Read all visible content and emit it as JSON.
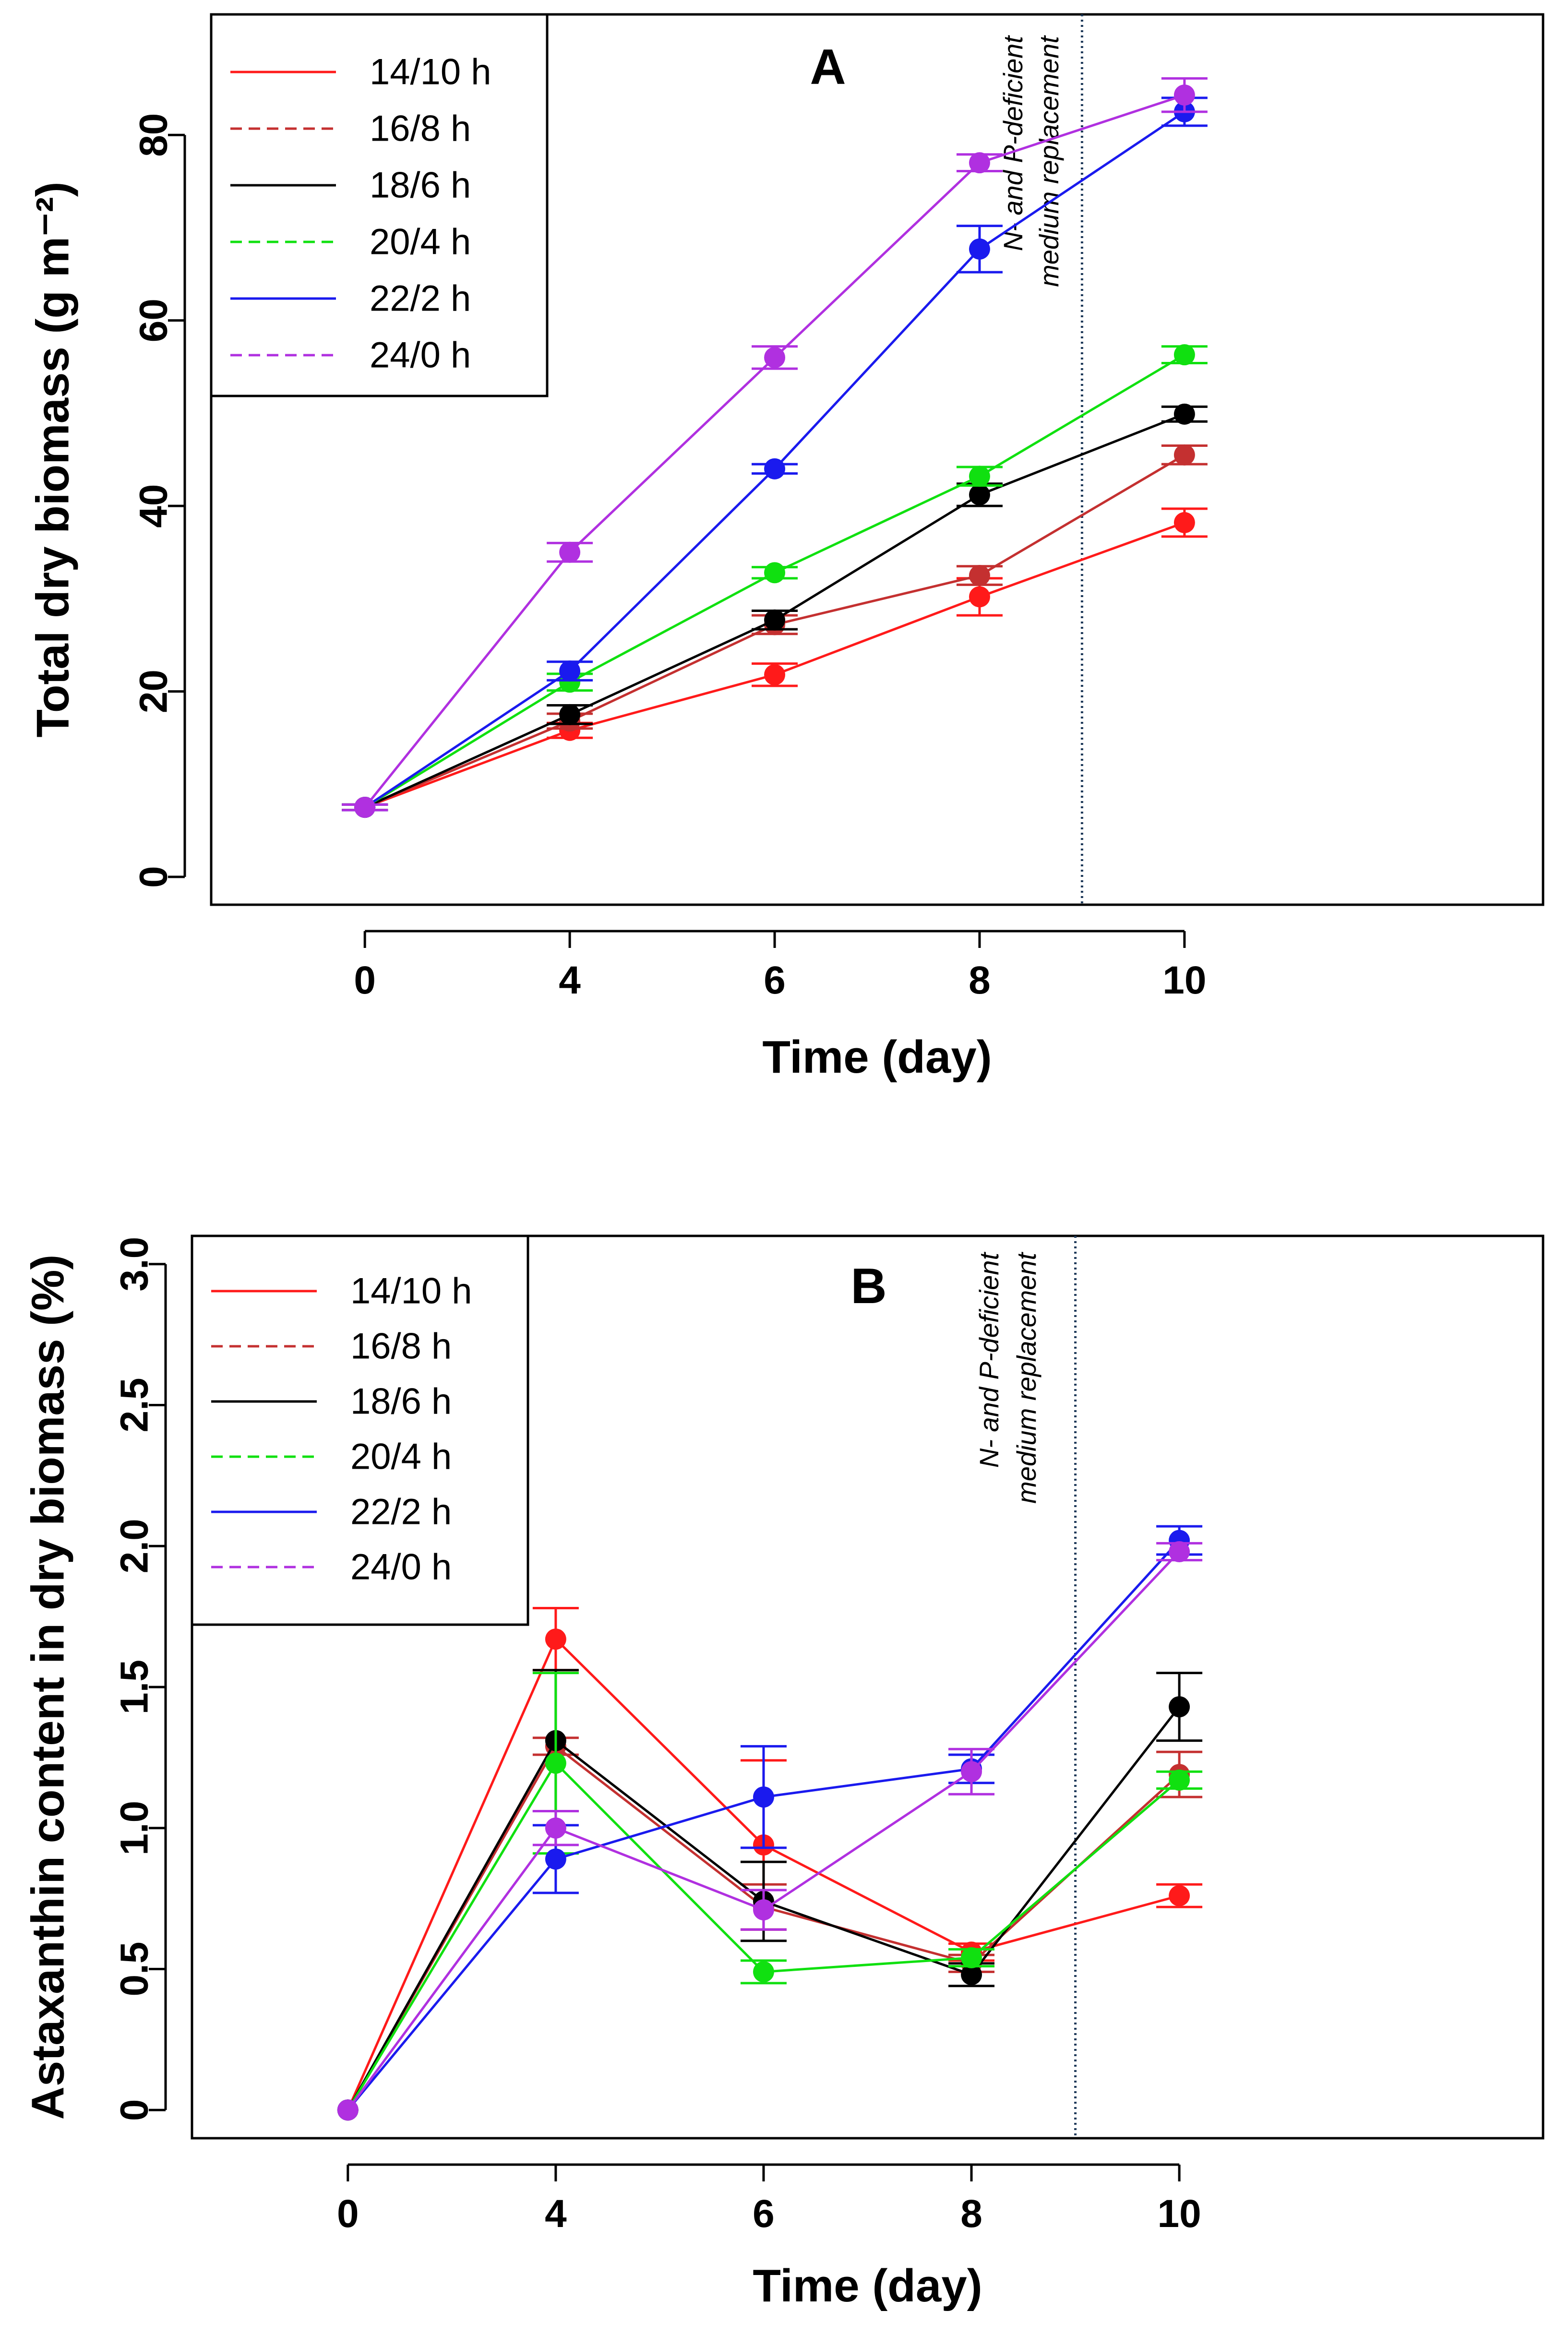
{
  "chart_data": [
    {
      "type": "line",
      "panel_label": "A",
      "xlabel": "Time (day)",
      "ylabel": "Total dry biomass (g m⁻²)",
      "xlim": [
        -1.5,
        11.5
      ],
      "ylim": [
        -3,
        93
      ],
      "x_ticks": [
        0,
        4,
        6,
        8,
        10
      ],
      "x_tick_labels": [
        "0",
        "4",
        "6",
        "8",
        "10"
      ],
      "y_ticks": [
        0,
        20,
        40,
        60,
        80
      ],
      "y_tick_labels": [
        "0",
        "20",
        "40",
        "60",
        "80"
      ],
      "x_positions": [
        0,
        2,
        4,
        6,
        8
      ],
      "annotation": {
        "x": 7,
        "lines": [
          "N- and P-deficient",
          "medium replacement"
        ]
      },
      "legend_position": "top-left",
      "series": [
        {
          "name": "14/10 h",
          "color": "#ff1a1a",
          "dash": "solid",
          "values": [
            7.5,
            15.8,
            21.8,
            30.2,
            38.2
          ],
          "err": [
            0.3,
            0.8,
            1.2,
            2.0,
            1.5
          ]
        },
        {
          "name": "16/8 h",
          "color": "#c43030",
          "dash": "dashed",
          "values": [
            7.5,
            16.8,
            27.2,
            32.5,
            45.5
          ],
          "err": [
            0.3,
            0.8,
            1.0,
            1.0,
            1.0
          ]
        },
        {
          "name": "18/6 h",
          "color": "#000000",
          "dash": "solid",
          "values": [
            7.5,
            17.5,
            27.7,
            41.2,
            49.9
          ],
          "err": [
            0.3,
            1.0,
            1.0,
            1.2,
            0.8
          ]
        },
        {
          "name": "20/4 h",
          "color": "#10e010",
          "dash": "dashed",
          "values": [
            7.5,
            21.0,
            32.8,
            43.2,
            56.3
          ],
          "err": [
            0.3,
            0.9,
            0.6,
            1.0,
            0.9
          ]
        },
        {
          "name": "22/2 h",
          "color": "#1a1aee",
          "dash": "solid",
          "values": [
            7.5,
            22.2,
            44.0,
            67.7,
            82.5
          ],
          "err": [
            0.3,
            1.0,
            0.5,
            2.5,
            1.5
          ]
        },
        {
          "name": "24/0 h",
          "color": "#b030e0",
          "dash": "dashed",
          "values": [
            7.5,
            35.0,
            56.0,
            77.0,
            84.3
          ],
          "err": [
            0.3,
            1.0,
            1.2,
            0.9,
            1.8
          ]
        }
      ]
    },
    {
      "type": "line",
      "panel_label": "B",
      "xlabel": "Time (day)",
      "ylabel": "Astaxanthin content in dry biomass (%)",
      "xlim": [
        -1.5,
        11.5
      ],
      "ylim": [
        -0.1,
        3.1
      ],
      "x_ticks": [
        0,
        4,
        6,
        8,
        10
      ],
      "x_tick_labels": [
        "0",
        "4",
        "6",
        "8",
        "10"
      ],
      "y_ticks": [
        0,
        0.5,
        1.0,
        1.5,
        2.0,
        2.5,
        3.0
      ],
      "y_tick_labels": [
        "0",
        "0.5",
        "1.0",
        "1.5",
        "2.0",
        "2.5",
        "3.0"
      ],
      "x_positions": [
        0,
        2,
        4,
        6,
        8
      ],
      "annotation": {
        "x": 7,
        "lines": [
          "N- and P-deficient",
          "medium replacement"
        ]
      },
      "legend_position": "top-left",
      "series": [
        {
          "name": "14/10 h",
          "color": "#ff1a1a",
          "dash": "solid",
          "values": [
            0,
            1.67,
            0.94,
            0.56,
            0.76
          ],
          "err": [
            0,
            0.11,
            0.3,
            0.03,
            0.04
          ]
        },
        {
          "name": "16/8 h",
          "color": "#c43030",
          "dash": "dashed",
          "values": [
            0,
            1.29,
            0.72,
            0.52,
            1.19
          ],
          "err": [
            0,
            0.03,
            0.08,
            0.03,
            0.08
          ]
        },
        {
          "name": "18/6 h",
          "color": "#000000",
          "dash": "solid",
          "values": [
            0,
            1.31,
            0.74,
            0.48,
            1.43
          ],
          "err": [
            0,
            0.25,
            0.14,
            0.04,
            0.12
          ]
        },
        {
          "name": "20/4 h",
          "color": "#10e010",
          "dash": "dashed",
          "values": [
            0,
            1.23,
            0.49,
            0.54,
            1.17
          ],
          "err": [
            0,
            0.32,
            0.04,
            0.03,
            0.03
          ]
        },
        {
          "name": "22/2 h",
          "color": "#1a1aee",
          "dash": "solid",
          "values": [
            0,
            0.89,
            1.11,
            1.21,
            2.02
          ],
          "err": [
            0,
            0.12,
            0.18,
            0.05,
            0.05
          ]
        },
        {
          "name": "24/0 h",
          "color": "#b030e0",
          "dash": "dashed",
          "values": [
            0,
            1.0,
            0.71,
            1.2,
            1.98
          ],
          "err": [
            0,
            0.06,
            0.07,
            0.08,
            0.03
          ]
        }
      ]
    }
  ]
}
